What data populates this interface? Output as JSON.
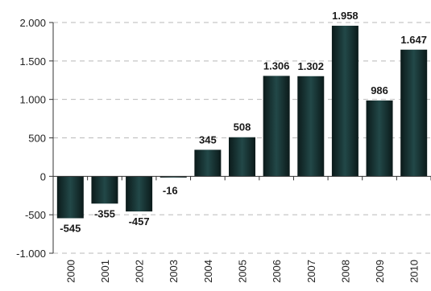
{
  "chart_data": {
    "type": "bar",
    "categories": [
      "2000",
      "2001",
      "2002",
      "2003",
      "2004",
      "2005",
      "2006",
      "2007",
      "2008",
      "2009",
      "2010"
    ],
    "values": [
      -545,
      -355,
      -457,
      -16,
      345,
      508,
      1306,
      1302,
      1958,
      986,
      1647
    ],
    "data_labels": [
      "-545",
      "-355",
      "-457",
      "-16",
      "345",
      "508",
      "1.306",
      "1.302",
      "1.958",
      "986",
      "1.647"
    ],
    "y_ticks": [
      -1000,
      -500,
      0,
      500,
      1000,
      1500,
      2000
    ],
    "y_tick_labels": [
      "-1.000",
      "-500",
      "0",
      "500",
      "1.000",
      "1.500",
      "2.000"
    ],
    "ylim": [
      -1000,
      2000
    ],
    "grid": true,
    "legend": "none",
    "title": "",
    "xlabel": "",
    "ylabel": "",
    "colors": {
      "bar_dark": "#0d1f1f",
      "bar_mid": "#1f4444",
      "grid": "#b9b9b9",
      "axis": "#333333"
    }
  }
}
